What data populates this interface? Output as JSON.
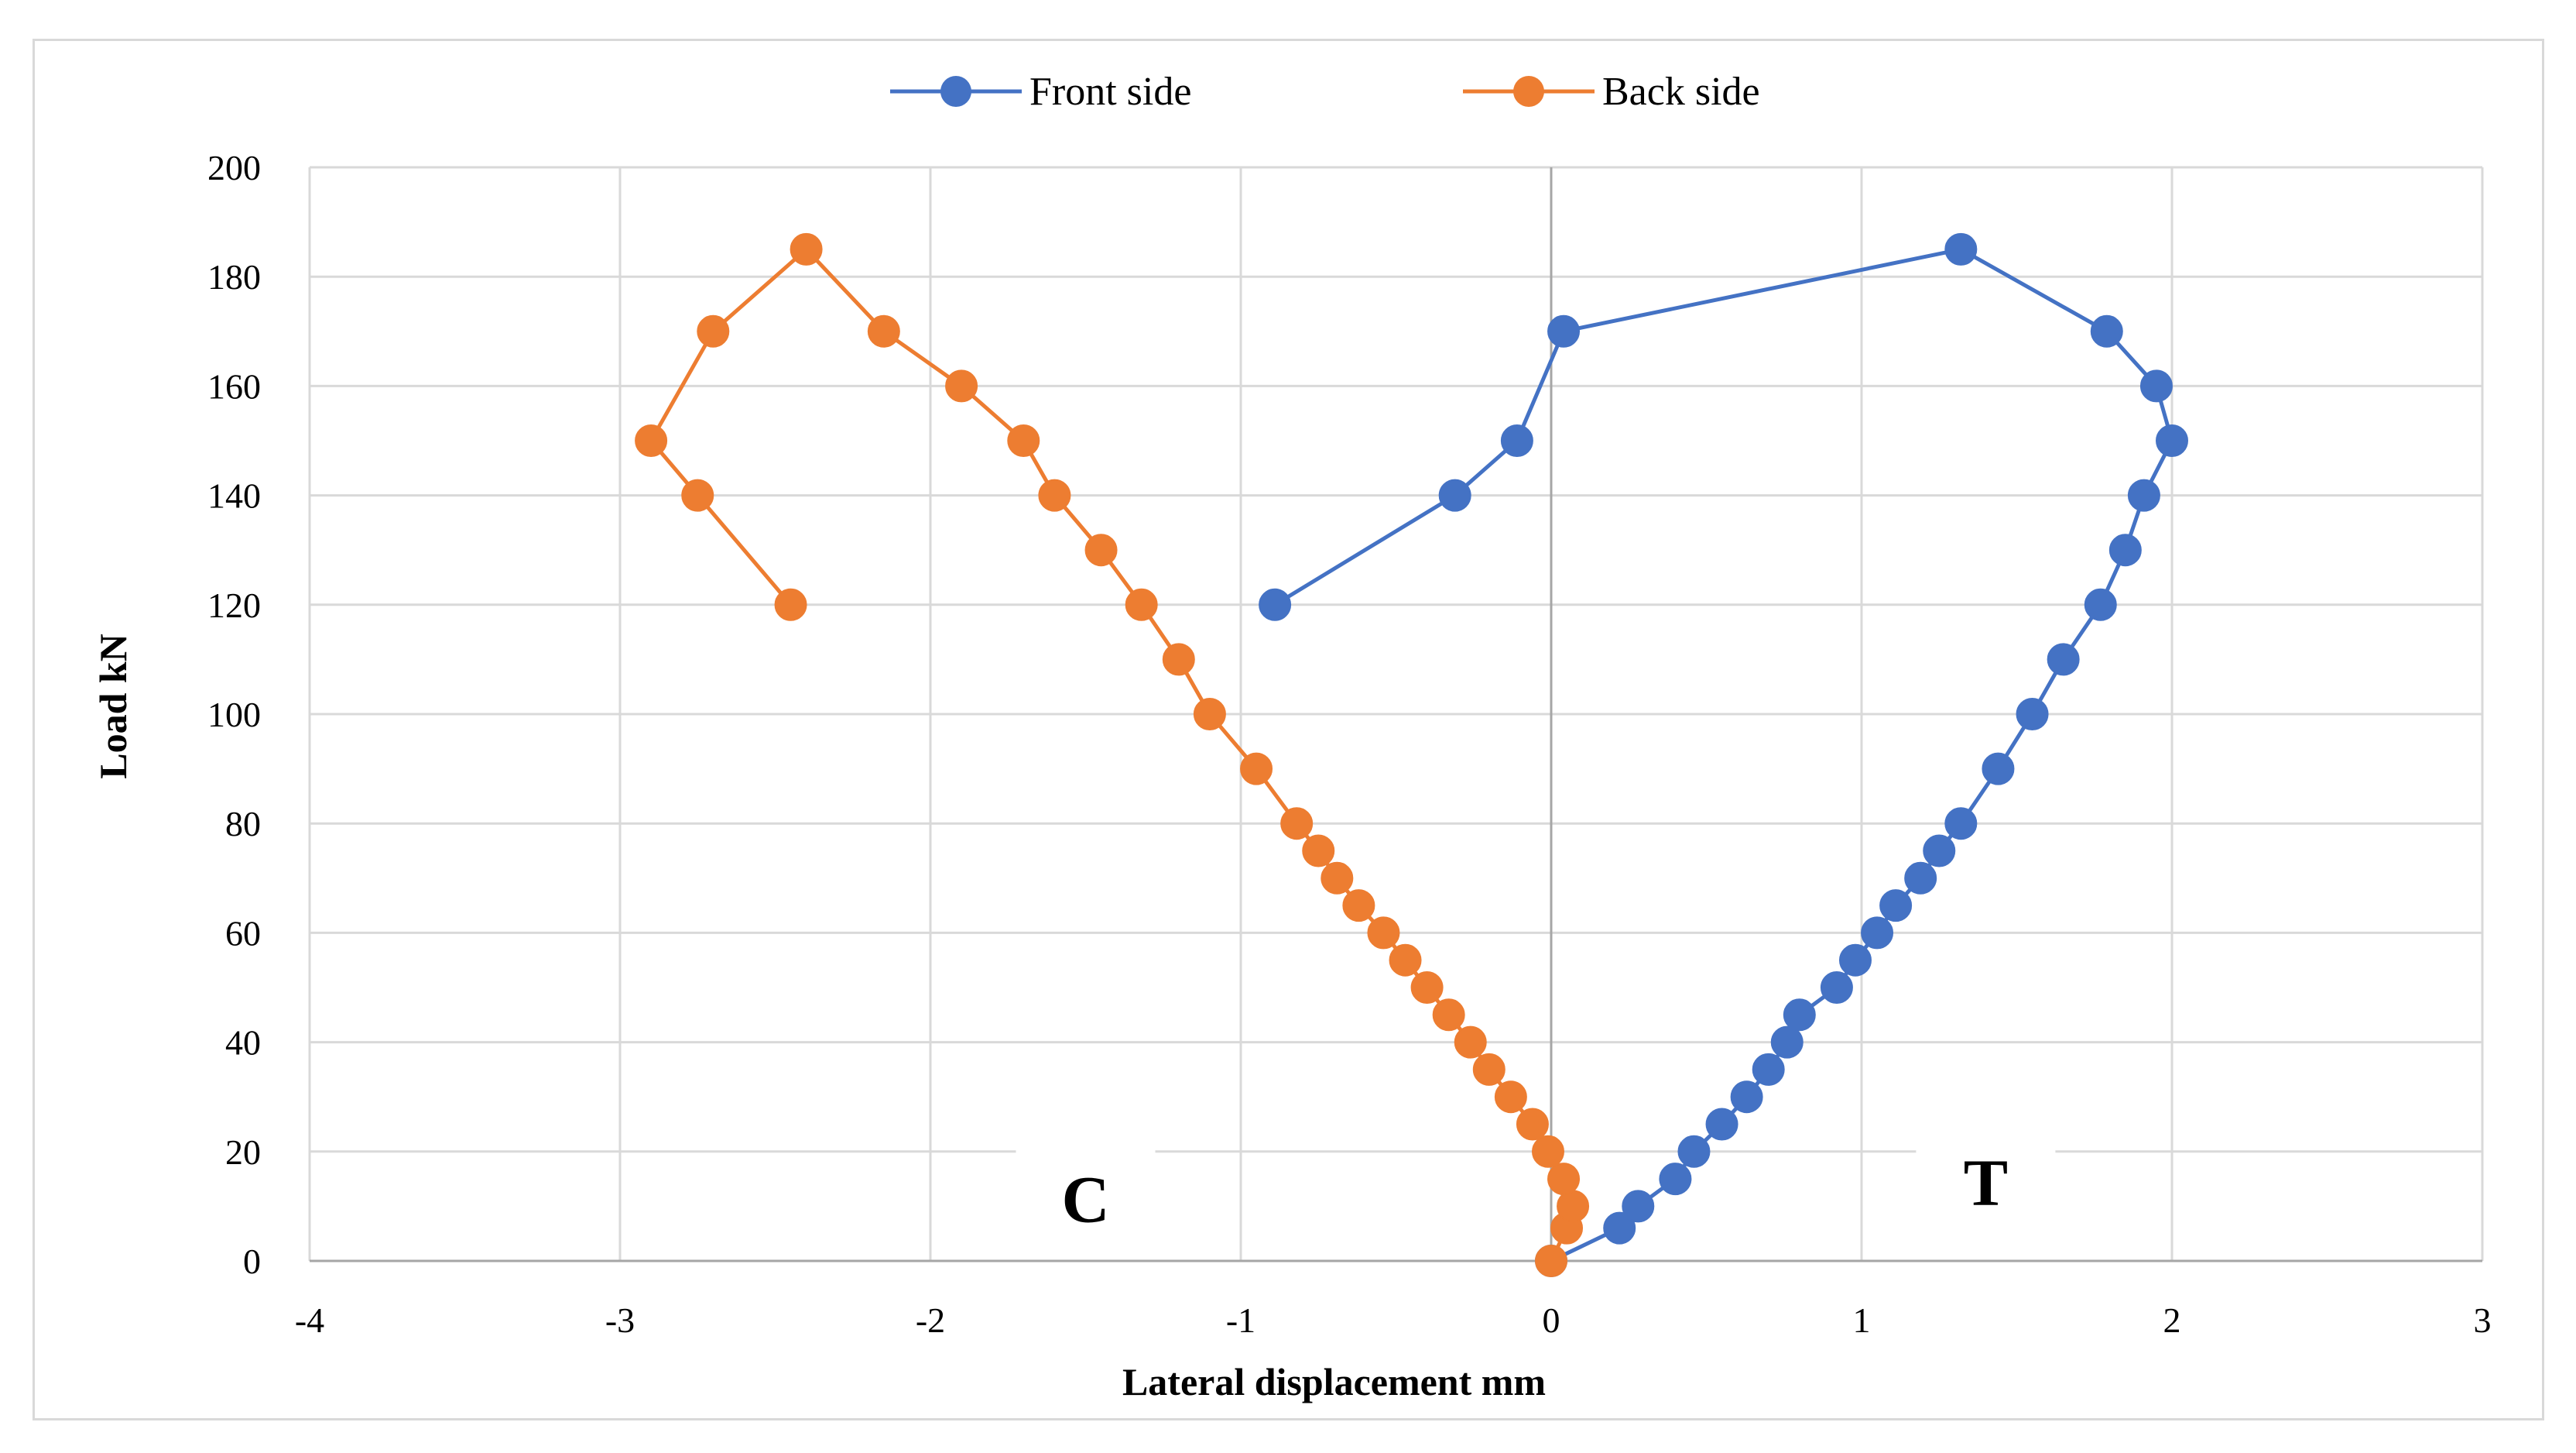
{
  "chart_data": {
    "type": "scatter",
    "title": "",
    "xlabel": "Lateral displacement mm",
    "ylabel": "Load kN",
    "xlim": [
      -4,
      3
    ],
    "ylim": [
      0,
      200
    ],
    "x_ticks": [
      -4,
      -3,
      -2,
      -1,
      0,
      1,
      2,
      3
    ],
    "y_ticks": [
      0,
      20,
      40,
      60,
      80,
      100,
      120,
      140,
      160,
      180,
      200
    ],
    "grid": true,
    "legend_position": "top-center",
    "annotations": [
      {
        "text": "C",
        "x": -1.5,
        "y": 10
      },
      {
        "text": "T",
        "x": 1.4,
        "y": 13
      }
    ],
    "series": [
      {
        "name": "Front side",
        "color": "#4472C4",
        "line": true,
        "markers": true,
        "points": [
          [
            0.0,
            0
          ],
          [
            0.22,
            6
          ],
          [
            0.28,
            10
          ],
          [
            0.4,
            15
          ],
          [
            0.46,
            20
          ],
          [
            0.55,
            25
          ],
          [
            0.63,
            30
          ],
          [
            0.7,
            35
          ],
          [
            0.76,
            40
          ],
          [
            0.8,
            45
          ],
          [
            0.92,
            50
          ],
          [
            0.98,
            55
          ],
          [
            1.05,
            60
          ],
          [
            1.11,
            65
          ],
          [
            1.19,
            70
          ],
          [
            1.25,
            75
          ],
          [
            1.32,
            80
          ],
          [
            1.44,
            90
          ],
          [
            1.55,
            100
          ],
          [
            1.65,
            110
          ],
          [
            1.77,
            120
          ],
          [
            1.85,
            130
          ],
          [
            1.91,
            140
          ],
          [
            2.0,
            150
          ],
          [
            1.95,
            160
          ],
          [
            1.79,
            170
          ],
          [
            1.32,
            185
          ],
          [
            0.04,
            170
          ],
          [
            -0.11,
            150
          ],
          [
            -0.31,
            140
          ],
          [
            -0.89,
            120
          ]
        ]
      },
      {
        "name": "Back side",
        "color": "#ED7D31",
        "line": true,
        "markers": true,
        "points": [
          [
            0.0,
            0
          ],
          [
            0.05,
            6
          ],
          [
            0.07,
            10
          ],
          [
            0.04,
            15
          ],
          [
            -0.01,
            20
          ],
          [
            -0.06,
            25
          ],
          [
            -0.13,
            30
          ],
          [
            -0.2,
            35
          ],
          [
            -0.26,
            40
          ],
          [
            -0.33,
            45
          ],
          [
            -0.4,
            50
          ],
          [
            -0.47,
            55
          ],
          [
            -0.54,
            60
          ],
          [
            -0.62,
            65
          ],
          [
            -0.69,
            70
          ],
          [
            -0.75,
            75
          ],
          [
            -0.82,
            80
          ],
          [
            -0.95,
            90
          ],
          [
            -1.1,
            100
          ],
          [
            -1.2,
            110
          ],
          [
            -1.32,
            120
          ],
          [
            -1.45,
            130
          ],
          [
            -1.6,
            140
          ],
          [
            -1.7,
            150
          ],
          [
            -1.9,
            160
          ],
          [
            -2.15,
            170
          ],
          [
            -2.4,
            185
          ],
          [
            -2.7,
            170
          ],
          [
            -2.9,
            150
          ],
          [
            -2.75,
            140
          ],
          [
            -2.45,
            120
          ]
        ]
      }
    ]
  }
}
